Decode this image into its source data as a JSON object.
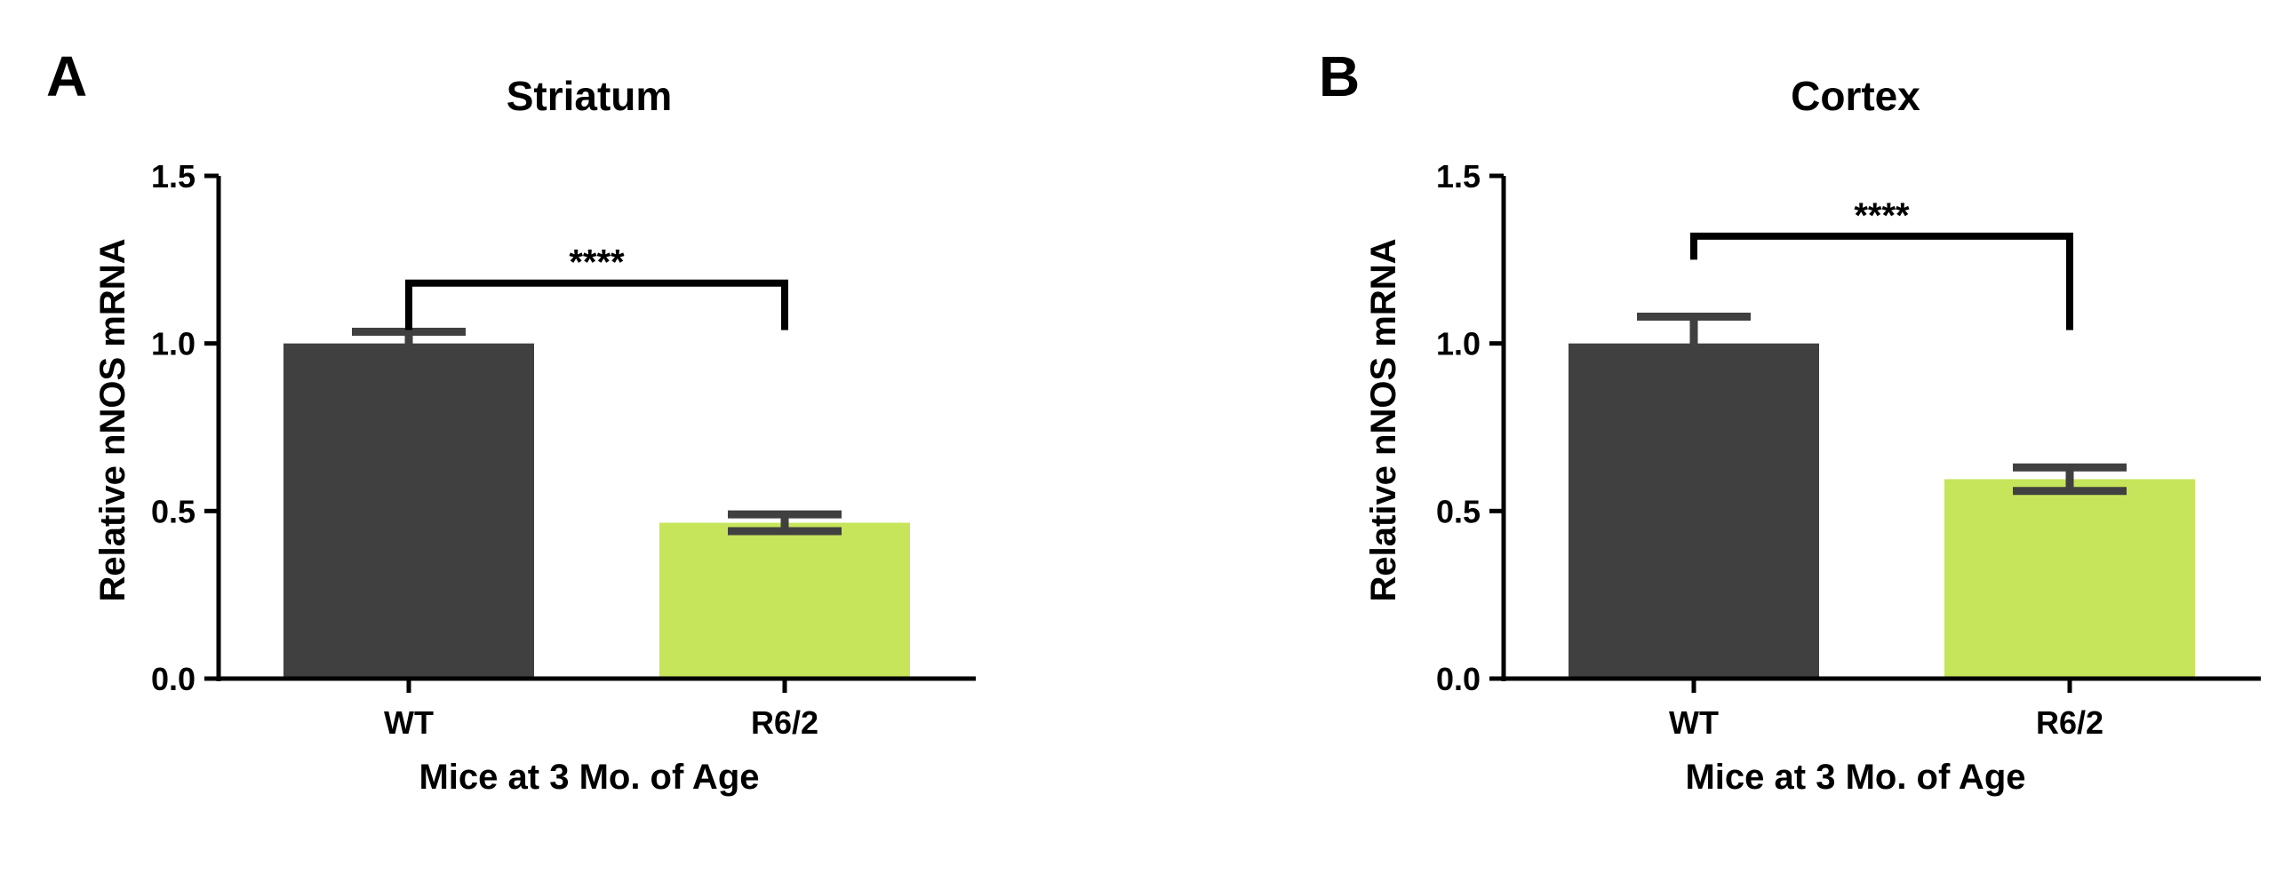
{
  "colors": {
    "wt": "#404040",
    "r62": "#c7e55a",
    "axis": "#000000",
    "error": "#404040"
  },
  "chart_data": [
    {
      "type": "bar",
      "panel": "A",
      "title": "Striatum",
      "xlabel": "Mice at 3 Mo. of Age",
      "ylabel": "Relative nNOS mRNA",
      "categories": [
        "WT",
        "R6/2"
      ],
      "values": [
        1.0,
        0.465
      ],
      "errors": [
        0.035,
        0.025
      ],
      "ylim": [
        0,
        1.5
      ],
      "yticks": [
        "0.0",
        "0.5",
        "1.0",
        "1.5"
      ],
      "significance": {
        "label": "****",
        "between": [
          "WT",
          "R6/2"
        ],
        "y": 1.18,
        "drop_left": 0.14,
        "drop_right": 0.14
      },
      "grid": false
    },
    {
      "type": "bar",
      "panel": "B",
      "title": "Cortex",
      "xlabel": "Mice at 3 Mo. of Age",
      "ylabel": "Relative nNOS mRNA",
      "categories": [
        "WT",
        "R6/2"
      ],
      "values": [
        1.0,
        0.595
      ],
      "errors": [
        0.08,
        0.035
      ],
      "ylim": [
        0,
        1.5
      ],
      "yticks": [
        "0.0",
        "0.5",
        "1.0",
        "1.5"
      ],
      "significance": {
        "label": "****",
        "between": [
          "WT",
          "R6/2"
        ],
        "y": 1.32,
        "drop_left": 0.07,
        "drop_right": 0.28
      },
      "grid": false
    }
  ]
}
